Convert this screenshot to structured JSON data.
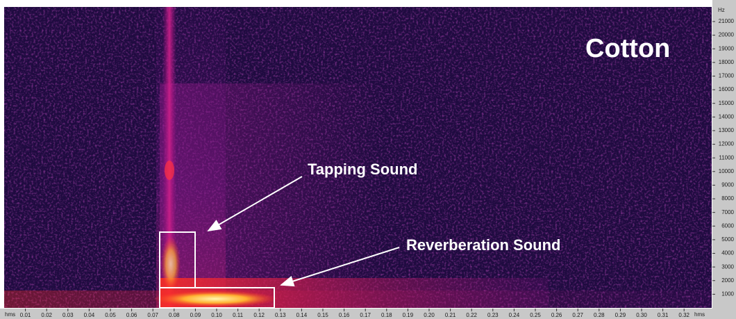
{
  "chart_data": {
    "type": "spectrogram",
    "title": "Cotton",
    "x_unit": "hms",
    "y_unit": "Hz",
    "xlim": [
      0,
      0.333
    ],
    "ylim": [
      0,
      22070
    ],
    "xticks": [
      0.01,
      0.02,
      0.03,
      0.04,
      0.05,
      0.06,
      0.07,
      0.08,
      0.09,
      {
        "value": 0.1,
        "label": "0.10"
      },
      0.11,
      0.12,
      0.13,
      0.14,
      0.15,
      0.16,
      0.17,
      0.18,
      0.19,
      {
        "value": 0.2,
        "label": "0.20"
      },
      0.21,
      0.22,
      0.23,
      0.24,
      0.25,
      0.26,
      0.27,
      0.28,
      0.29,
      {
        "value": 0.3,
        "label": "0.30"
      },
      0.31,
      0.32
    ],
    "yticks": [
      1000,
      2000,
      3000,
      4000,
      5000,
      6000,
      7000,
      8000,
      9000,
      10000,
      11000,
      12000,
      13000,
      14000,
      15000,
      16000,
      17000,
      18000,
      19000,
      20000,
      21000
    ],
    "annotations": [
      "Tapping Sound",
      "Reverberation Sound"
    ]
  }
}
